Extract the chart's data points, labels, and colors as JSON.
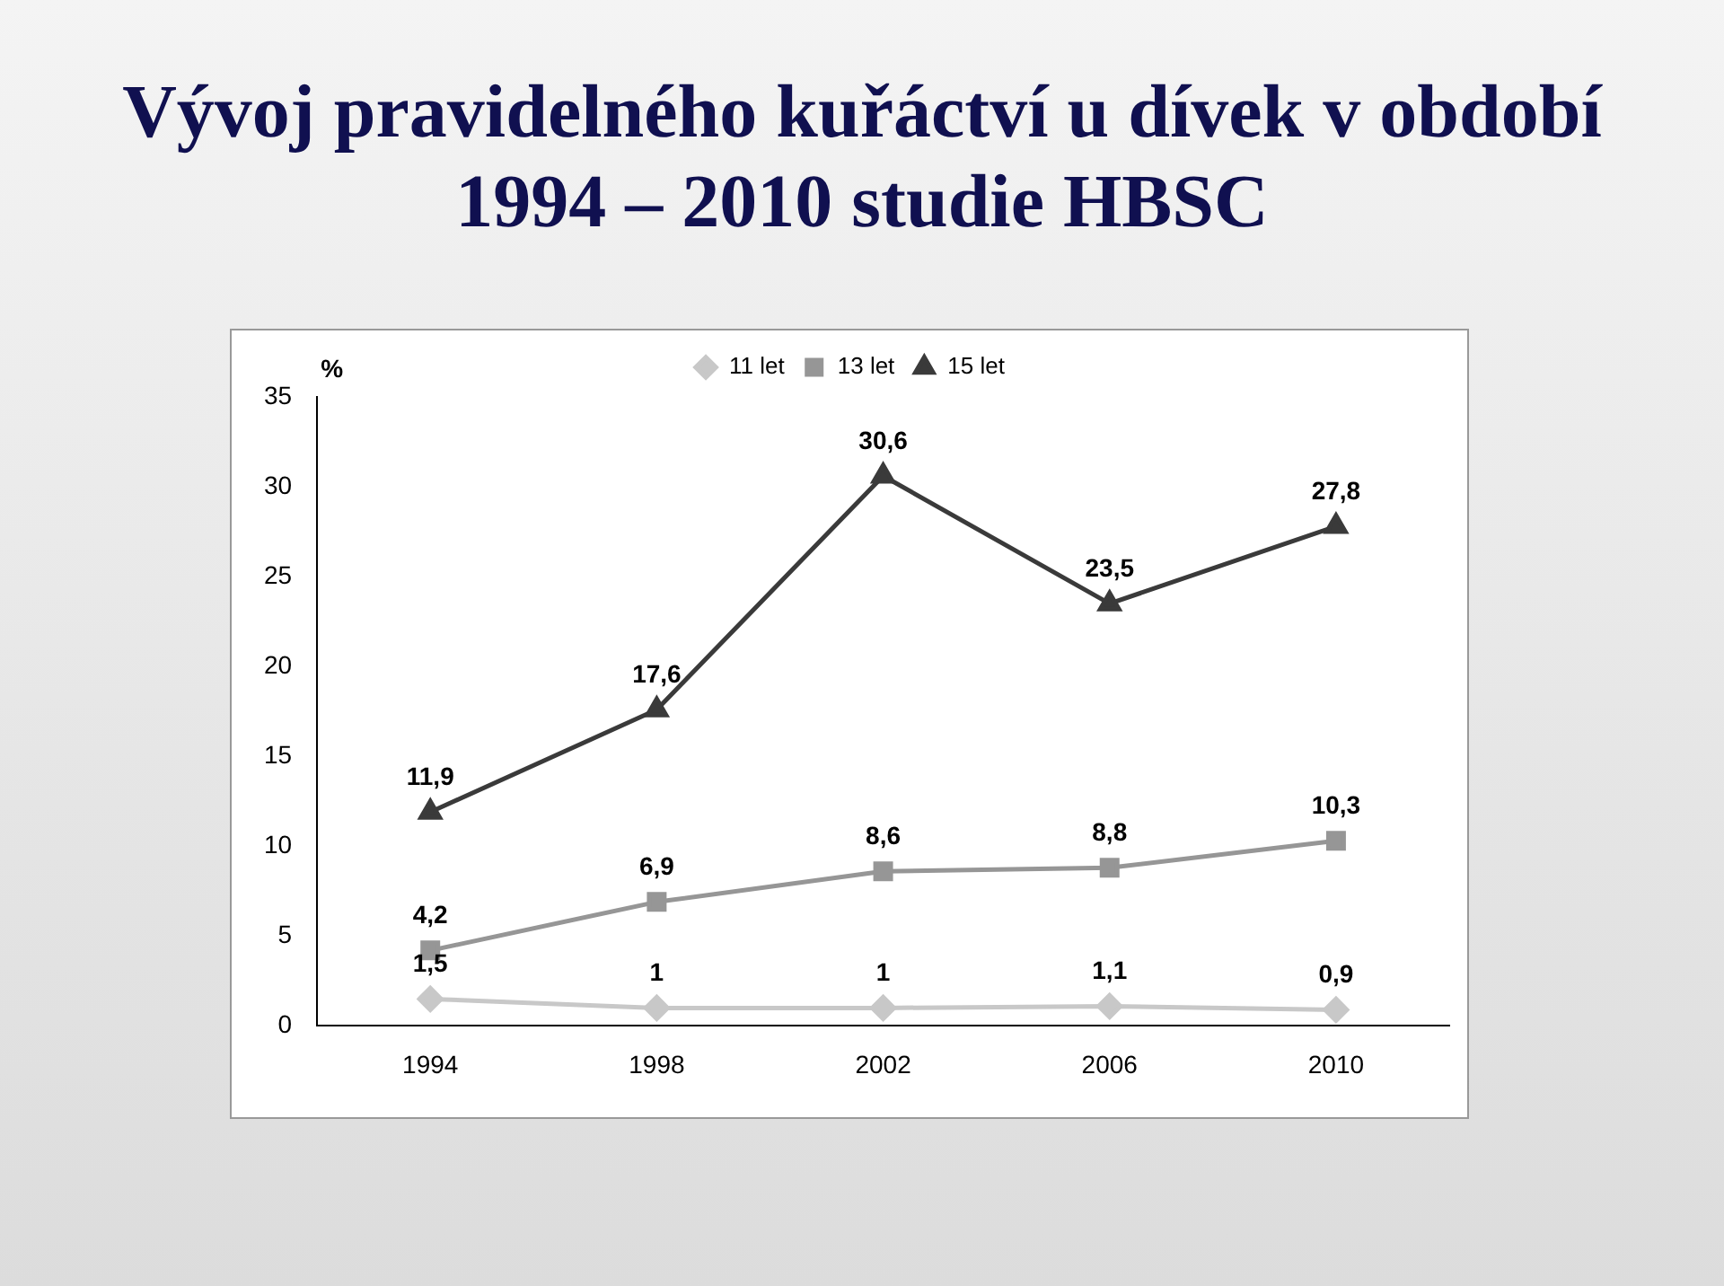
{
  "chart_data": {
    "type": "line",
    "title": "Vývoj pravidelného kuřáctví u dívek v období 1994 – 2010 studie HBSC",
    "ylabel": "%",
    "categories": [
      "1994",
      "1998",
      "2002",
      "2006",
      "2010"
    ],
    "series": [
      {
        "name": "11 let",
        "color": "#c8c8c8",
        "marker": "diamond",
        "values": [
          1.5,
          1,
          1,
          1.1,
          0.9
        ],
        "value_labels": [
          "1,5",
          "1",
          "1",
          "1,1",
          "0,9"
        ]
      },
      {
        "name": "13 let",
        "color": "#969696",
        "marker": "square",
        "values": [
          4.2,
          6.9,
          8.6,
          8.8,
          10.3
        ],
        "value_labels": [
          "4,2",
          "6,9",
          "8,6",
          "8,8",
          "10,3"
        ]
      },
      {
        "name": "15 let",
        "color": "#3a3a3a",
        "marker": "triangle",
        "values": [
          11.9,
          17.6,
          30.6,
          23.5,
          27.8
        ],
        "value_labels": [
          "11,9",
          "17,6",
          "30,6",
          "23,5",
          "27,8"
        ]
      }
    ],
    "ylim": [
      0,
      35
    ],
    "yticks": [
      0,
      5,
      10,
      15,
      20,
      25,
      30,
      35
    ],
    "grid": false,
    "legend": "top",
    "line_style": "solid"
  }
}
